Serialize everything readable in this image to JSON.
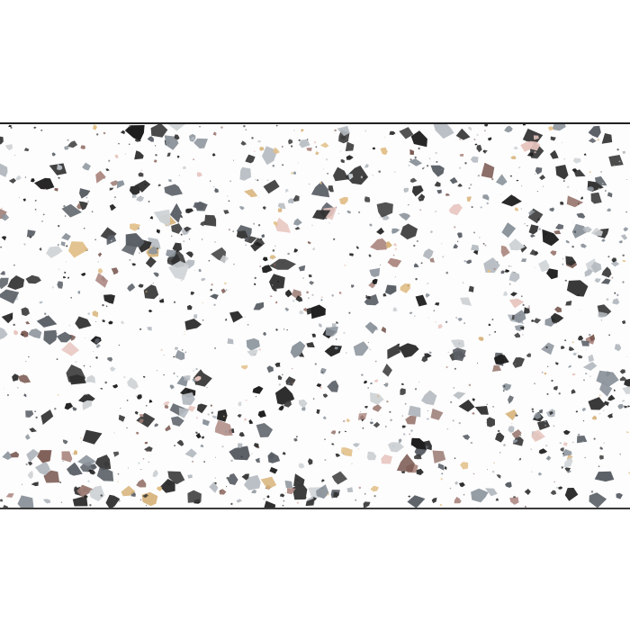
{
  "image": {
    "subject": "terrazzo-tile-swatch",
    "background_color": "#ffffff",
    "surface_color": "#fdfdfd",
    "chip_colors": [
      "#1e1e1e",
      "#2e2e2e",
      "#3b3b3b",
      "#5a5f66",
      "#8c949c",
      "#b4bac0",
      "#cfd3d6",
      "#e2c08a",
      "#d8b47c",
      "#9a7a72",
      "#b08c86",
      "#7a5a52",
      "#e8c6c0"
    ]
  }
}
